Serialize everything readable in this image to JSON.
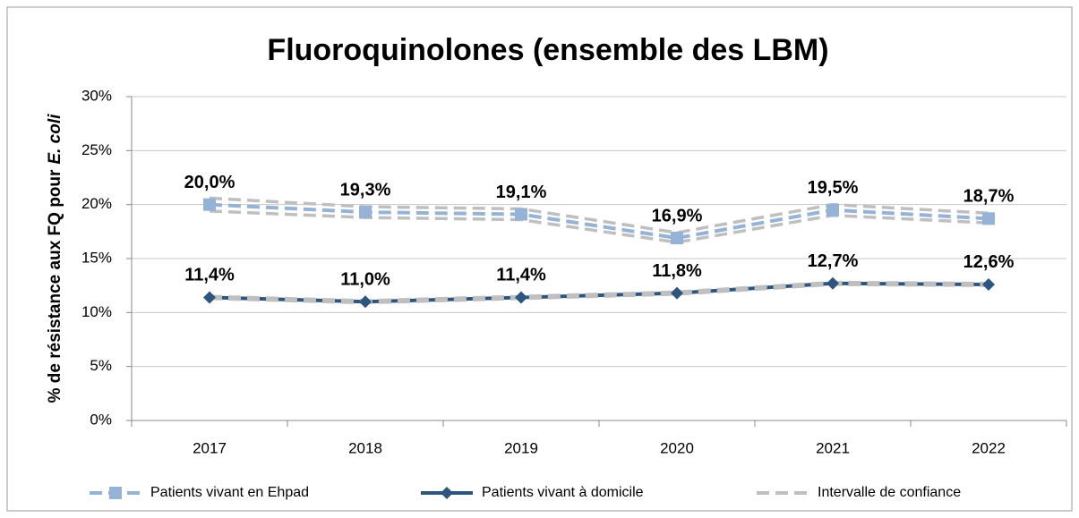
{
  "chart_data": {
    "type": "line",
    "title": "Fluoroquinolones (ensemble des LBM)",
    "ylabel": [
      "% de résistance aux FQ pour",
      "E. coli"
    ],
    "categories": [
      "2017",
      "2018",
      "2019",
      "2020",
      "2021",
      "2022"
    ],
    "ylim": [
      0,
      30
    ],
    "yticks": [
      {
        "value": 0,
        "label": "0%"
      },
      {
        "value": 5,
        "label": "5%"
      },
      {
        "value": 10,
        "label": "10%"
      },
      {
        "value": 15,
        "label": "15%"
      },
      {
        "value": 20,
        "label": "20%"
      },
      {
        "value": 25,
        "label": "25%"
      },
      {
        "value": 30,
        "label": "30%"
      }
    ],
    "grid": true,
    "legend": "bottom",
    "series": [
      {
        "name": "Patients vivant en Ehpad",
        "color": "#95b3d7",
        "dash": true,
        "marker": "square",
        "values": [
          20.0,
          19.3,
          19.1,
          16.9,
          19.5,
          18.7
        ],
        "value_labels": [
          "20,0%",
          "19,3%",
          "19,1%",
          "16,9%",
          "19,5%",
          "18,7%"
        ]
      },
      {
        "name": "Patients vivant à domicile",
        "color": "#2e5580",
        "dash": false,
        "marker": "diamond",
        "values": [
          11.4,
          11.0,
          11.4,
          11.8,
          12.7,
          12.6
        ],
        "value_labels": [
          "11,4%",
          "11,0%",
          "11,4%",
          "11,8%",
          "12,7%",
          "12,6%"
        ]
      }
    ],
    "interval": {
      "name": "Intervalle de confiance",
      "color": "#bfbfbf",
      "bounds": [
        {
          "lower": [
            19.4,
            18.8,
            18.6,
            16.5,
            19.0,
            18.3
          ],
          "upper": [
            20.6,
            19.8,
            19.6,
            17.4,
            20.0,
            19.2
          ]
        },
        {
          "lower": [
            11.3,
            10.9,
            11.3,
            11.7,
            12.6,
            12.5
          ],
          "upper": [
            11.5,
            11.1,
            11.5,
            11.9,
            12.8,
            12.7
          ]
        }
      ]
    }
  }
}
